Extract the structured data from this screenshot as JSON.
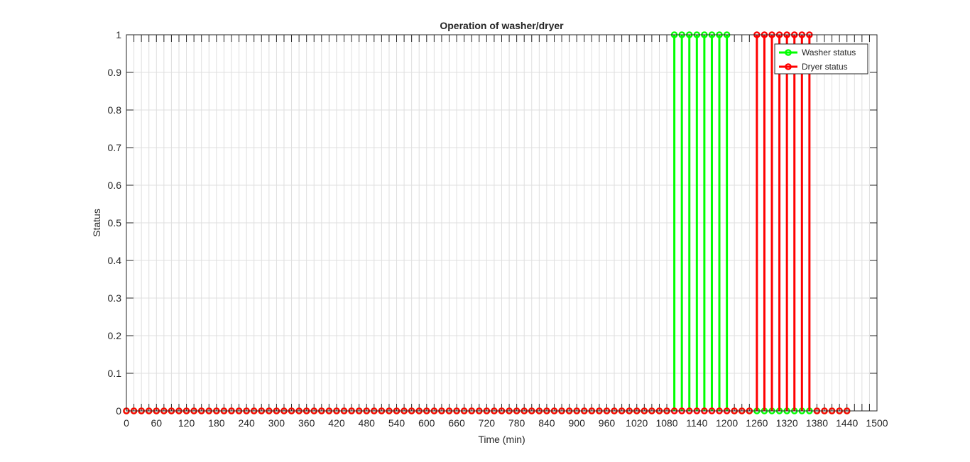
{
  "chart_data": {
    "type": "stem",
    "title": "Operation of washer/dryer",
    "xlabel": "Time (min)",
    "ylabel": "Status",
    "xlim": [
      0,
      1500
    ],
    "ylim": [
      0,
      1
    ],
    "x_ticks": [
      0,
      60,
      120,
      180,
      240,
      300,
      360,
      420,
      480,
      540,
      600,
      660,
      720,
      780,
      840,
      900,
      960,
      1020,
      1080,
      1140,
      1200,
      1260,
      1320,
      1380,
      1440,
      1500
    ],
    "y_ticks": [
      "0",
      "0.1",
      "0.2",
      "0.3",
      "0.4",
      "0.5",
      "0.6",
      "0.7",
      "0.8",
      "0.9",
      "1"
    ],
    "grid": true,
    "legend_position": "top-right",
    "series": [
      {
        "name": "Washer status",
        "color": "#00ff00",
        "x_start": 0,
        "x_end": 1440,
        "x_step": 15,
        "on_ranges": [
          [
            1095,
            1200
          ]
        ]
      },
      {
        "name": "Dryer status",
        "color": "#ff0000",
        "x_start": 0,
        "x_end": 1440,
        "x_step": 15,
        "on_ranges": [
          [
            1260,
            1365
          ]
        ]
      }
    ]
  }
}
